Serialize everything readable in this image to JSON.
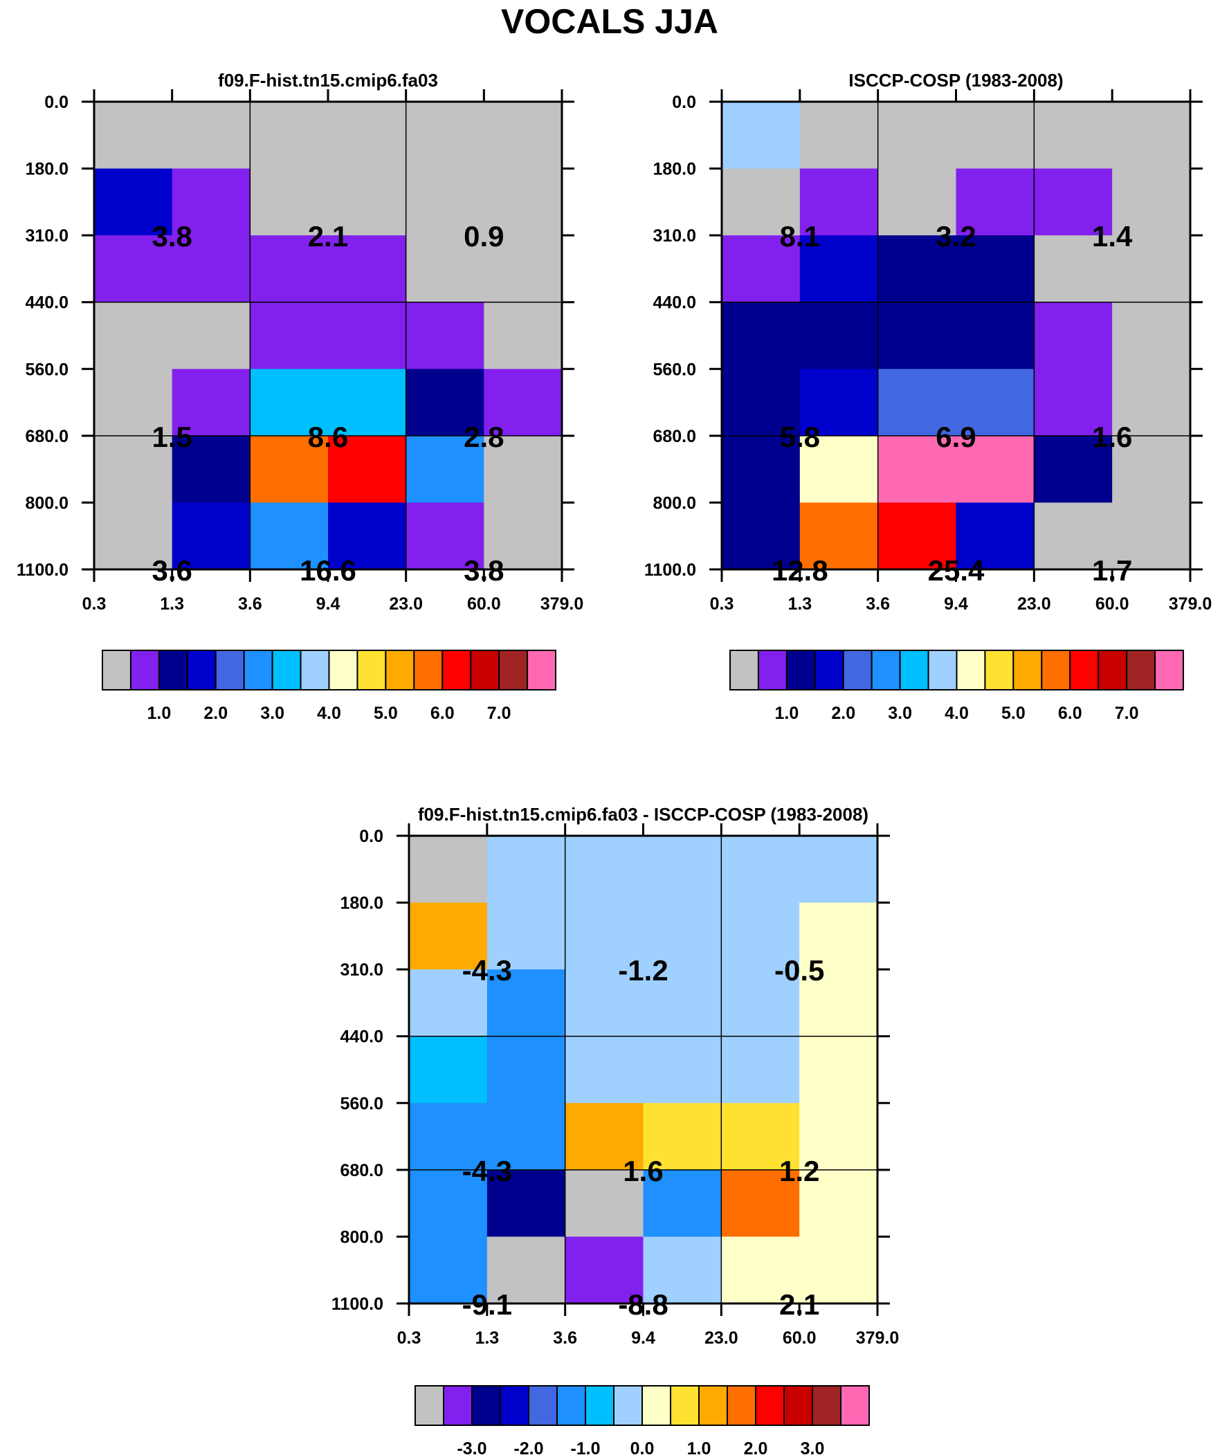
{
  "title": "VOCALS JJA",
  "palette": {
    "seq": [
      "#c2c2c2",
      "#8220ee",
      "#00008e",
      "#0000cc",
      "#4168e1",
      "#1e90ff",
      "#00bfff",
      "#a0d0ff",
      "#ffffc8",
      "#ffe132",
      "#ffaa00",
      "#ff6e00",
      "#ff0000",
      "#c80000",
      "#a02323",
      "#ff69b4"
    ],
    "diff": [
      "#c2c2c2",
      "#8220ee",
      "#00008e",
      "#0000cc",
      "#4168e1",
      "#1e90ff",
      "#00bfff",
      "#a0d0ff",
      "#ffffc8",
      "#ffe132",
      "#ffaa00",
      "#ff6e00",
      "#ff0000",
      "#c80000",
      "#a02323",
      "#ff69b4"
    ]
  },
  "chart_data": [
    {
      "type": "heatmap",
      "id": "model",
      "title": "f09.F-hist.tn15.cmip6.fa03",
      "xlabel": "",
      "ylabel": "",
      "x_ticks": [
        "0.3",
        "1.3",
        "3.6",
        "9.4",
        "23.0",
        "60.0",
        "379.0"
      ],
      "y_ticks": [
        "0.0",
        "180.0",
        "310.0",
        "440.0",
        "560.0",
        "680.0",
        "800.0",
        "1100.0"
      ],
      "cells": [
        [
          0,
          0,
          0,
          0,
          0,
          0
        ],
        [
          3,
          1,
          0,
          0,
          0,
          0
        ],
        [
          1,
          1,
          1,
          1,
          0,
          0
        ],
        [
          0,
          0,
          1,
          1,
          1,
          0
        ],
        [
          0,
          1,
          6,
          6,
          2,
          1
        ],
        [
          0,
          2,
          11,
          12,
          5,
          0
        ],
        [
          0,
          3,
          5,
          3,
          1,
          0
        ]
      ],
      "labels": [
        {
          "text": "3.8",
          "col_edge": 1,
          "row_edge": 2
        },
        {
          "text": "2.1",
          "col_edge": 3,
          "row_edge": 2
        },
        {
          "text": "0.9",
          "col_edge": 5,
          "row_edge": 2
        },
        {
          "text": "1.5",
          "col_edge": 1,
          "row_edge": 5
        },
        {
          "text": "8.6",
          "col_edge": 3,
          "row_edge": 5
        },
        {
          "text": "2.8",
          "col_edge": 5,
          "row_edge": 5
        },
        {
          "text": "3.6",
          "col_edge": 1,
          "row_edge": 7
        },
        {
          "text": "16.6",
          "col_edge": 3,
          "row_edge": 7
        },
        {
          "text": "3.8",
          "col_edge": 5,
          "row_edge": 7
        }
      ],
      "colorbar": {
        "palette": "seq",
        "labels": [
          "1.0",
          "2.0",
          "3.0",
          "4.0",
          "5.0",
          "6.0",
          "7.0"
        ]
      }
    },
    {
      "type": "heatmap",
      "id": "obs",
      "title": "ISCCP-COSP (1983-2008)",
      "xlabel": "",
      "ylabel": "",
      "x_ticks": [
        "0.3",
        "1.3",
        "3.6",
        "9.4",
        "23.0",
        "60.0",
        "379.0"
      ],
      "y_ticks": [
        "0.0",
        "180.0",
        "310.0",
        "440.0",
        "560.0",
        "680.0",
        "800.0",
        "1100.0"
      ],
      "cells": [
        [
          7,
          0,
          0,
          0,
          0,
          0
        ],
        [
          0,
          1,
          0,
          1,
          1,
          0
        ],
        [
          1,
          3,
          2,
          2,
          0,
          0
        ],
        [
          2,
          2,
          2,
          2,
          1,
          0
        ],
        [
          2,
          3,
          4,
          4,
          1,
          0
        ],
        [
          2,
          8,
          15,
          15,
          2,
          0
        ],
        [
          2,
          11,
          12,
          3,
          0,
          0
        ]
      ],
      "labels": [
        {
          "text": "8.1",
          "col_edge": 1,
          "row_edge": 2
        },
        {
          "text": "3.2",
          "col_edge": 3,
          "row_edge": 2
        },
        {
          "text": "1.4",
          "col_edge": 5,
          "row_edge": 2
        },
        {
          "text": "5.8",
          "col_edge": 1,
          "row_edge": 5
        },
        {
          "text": "6.9",
          "col_edge": 3,
          "row_edge": 5
        },
        {
          "text": "1.6",
          "col_edge": 5,
          "row_edge": 5
        },
        {
          "text": "12.8",
          "col_edge": 1,
          "row_edge": 7
        },
        {
          "text": "25.4",
          "col_edge": 3,
          "row_edge": 7
        },
        {
          "text": "1.7",
          "col_edge": 5,
          "row_edge": 7
        }
      ],
      "colorbar": {
        "palette": "seq",
        "labels": [
          "1.0",
          "2.0",
          "3.0",
          "4.0",
          "5.0",
          "6.0",
          "7.0"
        ]
      }
    },
    {
      "type": "heatmap",
      "id": "diff",
      "title": "f09.F-hist.tn15.cmip6.fa03 - ISCCP-COSP (1983-2008)",
      "xlabel": "",
      "ylabel": "",
      "x_ticks": [
        "0.3",
        "1.3",
        "3.6",
        "9.4",
        "23.0",
        "60.0",
        "379.0"
      ],
      "y_ticks": [
        "0.0",
        "180.0",
        "310.0",
        "440.0",
        "560.0",
        "680.0",
        "800.0",
        "1100.0"
      ],
      "cells": [
        [
          0,
          7,
          7,
          7,
          7,
          7
        ],
        [
          10,
          7,
          7,
          7,
          7,
          8
        ],
        [
          7,
          5,
          7,
          7,
          7,
          8
        ],
        [
          6,
          5,
          7,
          7,
          7,
          8
        ],
        [
          5,
          5,
          10,
          9,
          9,
          8
        ],
        [
          5,
          2,
          0,
          5,
          11,
          8
        ],
        [
          5,
          0,
          1,
          7,
          8,
          8
        ]
      ],
      "labels": [
        {
          "text": "-4.3",
          "col_edge": 1,
          "row_edge": 2
        },
        {
          "text": "-1.2",
          "col_edge": 3,
          "row_edge": 2
        },
        {
          "text": "-0.5",
          "col_edge": 5,
          "row_edge": 2
        },
        {
          "text": "-4.3",
          "col_edge": 1,
          "row_edge": 5
        },
        {
          "text": "1.6",
          "col_edge": 3,
          "row_edge": 5
        },
        {
          "text": "1.2",
          "col_edge": 5,
          "row_edge": 5
        },
        {
          "text": "-9.1",
          "col_edge": 1,
          "row_edge": 7
        },
        {
          "text": "-8.8",
          "col_edge": 3,
          "row_edge": 7
        },
        {
          "text": "2.1",
          "col_edge": 5,
          "row_edge": 7
        }
      ],
      "colorbar": {
        "palette": "diff",
        "labels": [
          "-3.0",
          "-2.0",
          "-1.0",
          "0.0",
          "1.0",
          "2.0",
          "3.0"
        ]
      }
    }
  ]
}
